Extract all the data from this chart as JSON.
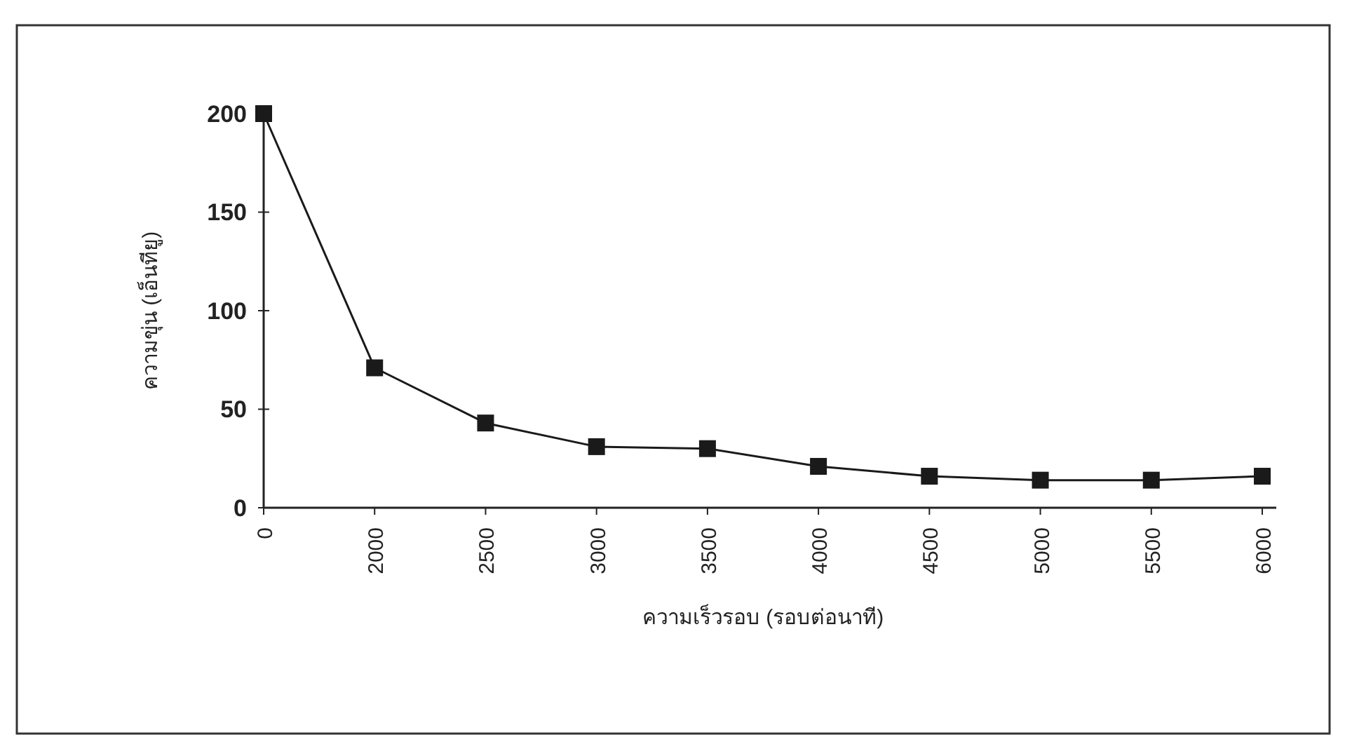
{
  "chart_data": {
    "type": "line",
    "xlabel": "ความเร็วรอบ (รอบต่อนาที)",
    "ylabel": "ความขุ่น (เอ็นทียู)",
    "categories": [
      "0",
      "2000",
      "2500",
      "3000",
      "3500",
      "4000",
      "4500",
      "5000",
      "5500",
      "6000"
    ],
    "series": [
      {
        "color": "#1a1a1a",
        "values": [
          200,
          71,
          43,
          31,
          30,
          21,
          16,
          14,
          14,
          16
        ]
      }
    ],
    "ylim": [
      0,
      200
    ],
    "yticks": [
      0,
      50,
      100,
      150,
      200
    ],
    "marker": "square",
    "line_style": "solid",
    "grid": false
  }
}
